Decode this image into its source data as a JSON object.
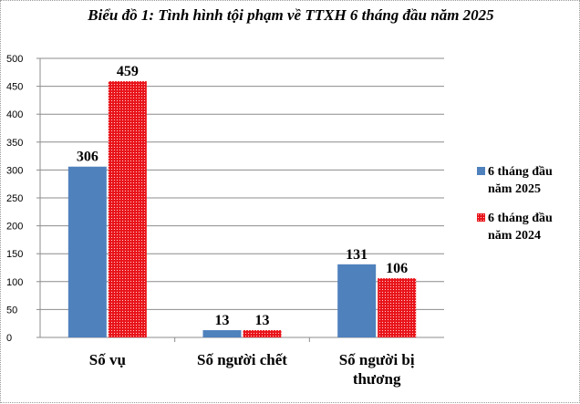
{
  "chart_data": {
    "type": "bar",
    "title": "Biểu đồ 1: Tình hình tội phạm về TTXH 6 tháng đầu năm 2025",
    "categories": [
      [
        "Số vụ"
      ],
      [
        "Số người chết"
      ],
      [
        "Số người bị",
        "thương"
      ]
    ],
    "series": [
      {
        "name": "6 tháng đầu năm 2025",
        "legend_lines": [
          "6 tháng đầu",
          "năm 2025"
        ],
        "values": [
          306,
          13,
          131
        ],
        "color": "#4f81bd",
        "pattern": "solid"
      },
      {
        "name": "6 tháng đầu năm 2024",
        "legend_lines": [
          "6 tháng đầu",
          "năm 2024"
        ],
        "values": [
          459,
          13,
          106
        ],
        "color": "#e8151b",
        "pattern": "dotted"
      }
    ],
    "data_labels": [
      [
        "306",
        "13",
        "131"
      ],
      [
        "459",
        "13",
        "106"
      ]
    ],
    "yticks": [
      "0",
      "50",
      "100",
      "150",
      "200",
      "250",
      "300",
      "350",
      "400",
      "450",
      "500"
    ],
    "ylim": [
      0,
      500
    ],
    "grid": true,
    "legend": "right"
  }
}
